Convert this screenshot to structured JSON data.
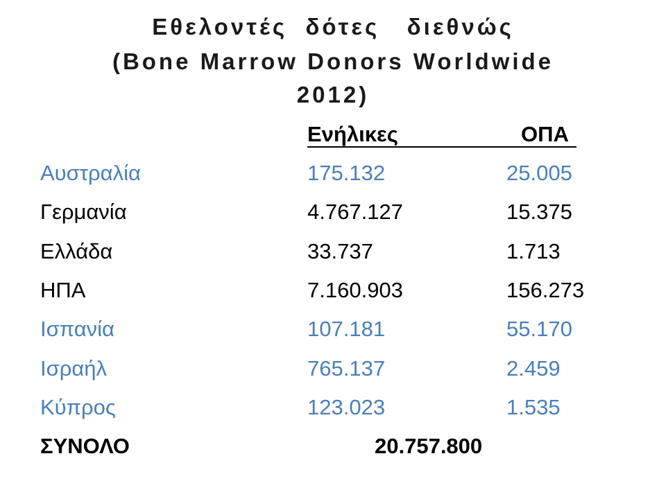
{
  "title": {
    "lines": [
      "Εθελοντές  δότες   διεθνώς",
      "(Bone Marrow Donors Worldwide",
      "2012)"
    ]
  },
  "table": {
    "header": [
      "Ενήλικες",
      "ΟΠΑ"
    ],
    "rows": [
      {
        "country": "Αυστραλία",
        "adults": "175.132",
        "opa": "25.005",
        "color": "#4a7ebb"
      },
      {
        "country": "Γερμανία",
        "adults": "4.767.127",
        "opa": "15.375",
        "color": "#000000"
      },
      {
        "country": "Ελλάδα",
        "adults": "33.737",
        "opa": "1.713",
        "color": "#000000"
      },
      {
        "country": "ΗΠΑ",
        "adults": "7.160.903",
        "opa": "156.273",
        "color": "#000000"
      },
      {
        "country": "Ισπανία",
        "adults": "107.181",
        "opa": "55.170",
        "color": "#4a7ebb"
      },
      {
        "country": "Ισραήλ",
        "adults": "765.137",
        "opa": "2.459",
        "color": "#4a7ebb"
      },
      {
        "country": "Κύπρος",
        "adults": "123.023",
        "opa": "1.535",
        "color": "#4a7ebb"
      }
    ],
    "total": {
      "label": "ΣΥΝΟΛΟ",
      "value": "20.757.800"
    }
  }
}
